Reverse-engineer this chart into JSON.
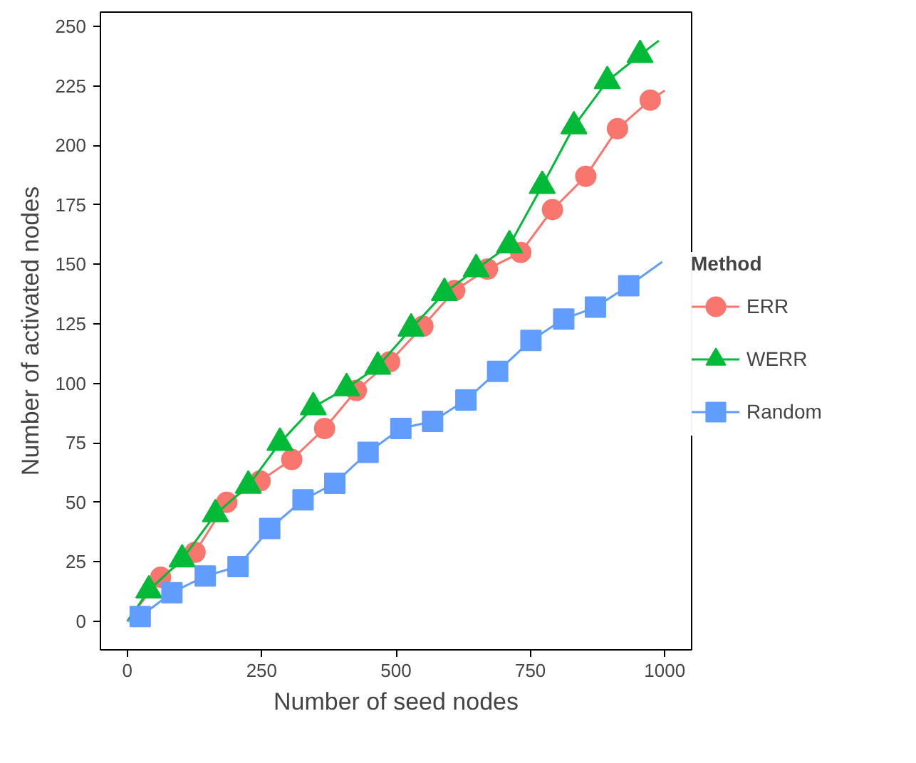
{
  "chart_data": {
    "type": "line",
    "xlabel": "Number of seed nodes",
    "ylabel": "Number of activated nodes",
    "legend_title": "Method",
    "legend": "right",
    "grid": false,
    "xlim": [
      -50,
      1050
    ],
    "ylim": [
      -12,
      256
    ],
    "xticks": [
      0,
      250,
      500,
      750,
      1000
    ],
    "yticks": [
      0,
      25,
      50,
      75,
      100,
      125,
      150,
      175,
      200,
      225,
      250
    ],
    "series": [
      {
        "name": "ERR",
        "color": "#f8766d",
        "marker": "circle",
        "x": [
          0,
          62,
          126,
          185,
          247,
          306,
          367,
          426,
          488,
          550,
          609,
          670,
          732,
          791,
          853,
          912,
          973,
          1000
        ],
        "values": [
          0,
          18.5,
          29,
          50,
          59,
          68,
          81,
          97,
          109,
          124,
          139,
          148,
          155,
          173,
          187,
          207,
          219,
          223
        ]
      },
      {
        "name": "WERR",
        "color": "#00ba38",
        "marker": "triangle",
        "x": [
          0,
          40,
          102,
          164,
          225,
          284,
          346,
          408,
          466,
          528,
          590,
          649,
          711,
          772,
          831,
          893,
          954,
          989
        ],
        "values": [
          0,
          13,
          26,
          45,
          57,
          75,
          90,
          98,
          107,
          123,
          138,
          148,
          158,
          183,
          208,
          227,
          238,
          244
        ]
      },
      {
        "name": "Random",
        "color": "#619cff",
        "marker": "square",
        "x": [
          0,
          24,
          83,
          145,
          206,
          265,
          327,
          386,
          448,
          509,
          568,
          630,
          689,
          751,
          812,
          871,
          933,
          995
        ],
        "values": [
          0,
          2,
          12,
          19,
          23,
          39,
          51,
          58,
          71,
          81,
          84,
          93,
          105,
          118,
          127,
          132,
          141,
          151
        ]
      }
    ]
  }
}
